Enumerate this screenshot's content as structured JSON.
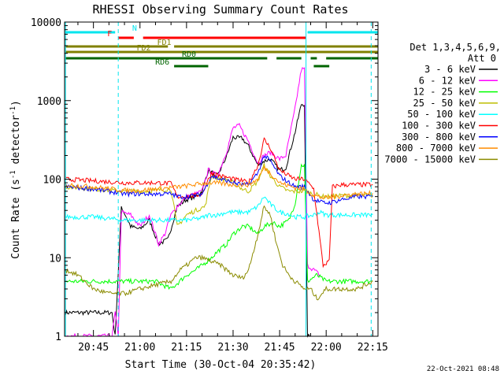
{
  "chart_data": {
    "type": "line",
    "title": "RHESSI Observing Summary Count Rates",
    "xlabel": "Start Time (30-Oct-04 20:35:42)",
    "ylabel_prefix": "Count Rate (s",
    "ylabel_sup1": "-1",
    "ylabel_mid": " detector",
    "ylabel_sup2": "-1",
    "ylabel_suffix": ")",
    "yscale": "log",
    "ylim": [
      1,
      10000
    ],
    "xlim_minutes": [
      35.7,
      136.7
    ],
    "x_ticks": [
      {
        "label": "20:45",
        "minute": 45
      },
      {
        "label": "21:00",
        "minute": 60
      },
      {
        "label": "21:15",
        "minute": 75
      },
      {
        "label": "21:30",
        "minute": 90
      },
      {
        "label": "21:45",
        "minute": 105
      },
      {
        "label": "22:00",
        "minute": 120
      },
      {
        "label": "22:15",
        "minute": 135
      }
    ],
    "y_ticks": [
      {
        "label": "1",
        "value": 1
      },
      {
        "label": "10",
        "value": 10
      },
      {
        "label": "100",
        "value": 100
      },
      {
        "label": "1000",
        "value": 1000
      },
      {
        "label": "10000",
        "value": 10000
      }
    ],
    "legend_header": [
      "Det 1,3,4,5,6,9,",
      "Att 0"
    ],
    "legend_placement": "right",
    "vertical_markers": [
      {
        "minute": 36,
        "color": "#00e5ee",
        "style": "solid"
      },
      {
        "minute": 53,
        "color": "#00e5ee",
        "style": "dashed"
      },
      {
        "minute": 113.5,
        "color": "#00e5ee",
        "style": "solid"
      },
      {
        "minute": 134.5,
        "color": "#00e5ee",
        "style": "dashed"
      }
    ],
    "flag_bars": [
      {
        "label": "N",
        "color": "#00e5ee",
        "segments": [
          [
            36,
            52
          ],
          [
            114,
            136.7
          ]
        ]
      },
      {
        "label": "F",
        "color": "#ff0000",
        "segments": [
          [
            53,
            58
          ],
          [
            61,
            113.5
          ]
        ]
      },
      {
        "label": "FD1",
        "color": "#808000",
        "segments": [
          [
            36,
            69
          ],
          [
            71,
            136.7
          ]
        ]
      },
      {
        "label": "FD2",
        "color": "#808000",
        "segments": [
          [
            36,
            136.7
          ]
        ]
      },
      {
        "label": "RD0",
        "color": "#006400",
        "segments": [
          [
            36,
            101
          ],
          [
            104,
            112
          ],
          [
            115,
            117
          ],
          [
            120,
            136.7
          ]
        ]
      },
      {
        "label": "RD6",
        "color": "#006400",
        "segments": [
          [
            71,
            82
          ],
          [
            116,
            121
          ]
        ]
      }
    ],
    "series": [
      {
        "name": "3 - 6 keV",
        "color": "#000000",
        "points": [
          [
            36,
            2
          ],
          [
            51,
            2
          ],
          [
            52,
            1
          ],
          [
            54,
            45
          ],
          [
            57,
            25
          ],
          [
            60,
            23
          ],
          [
            63,
            30
          ],
          [
            66,
            15
          ],
          [
            69,
            17
          ],
          [
            72,
            45
          ],
          [
            75,
            55
          ],
          [
            78,
            60
          ],
          [
            80,
            70
          ],
          [
            82,
            130
          ],
          [
            85,
            110
          ],
          [
            88,
            200
          ],
          [
            90,
            340
          ],
          [
            93,
            330
          ],
          [
            95,
            260
          ],
          [
            98,
            150
          ],
          [
            100,
            170
          ],
          [
            102,
            180
          ],
          [
            105,
            130
          ],
          [
            107,
            140
          ],
          [
            110,
            400
          ],
          [
            112,
            900
          ],
          [
            113,
            900
          ],
          [
            114,
            1
          ],
          [
            115,
            1
          ]
        ]
      },
      {
        "name": "6 - 12 keV",
        "color": "#ff00ff",
        "points": [
          [
            36,
            1
          ],
          [
            51,
            1
          ],
          [
            52,
            2
          ],
          [
            53,
            1
          ],
          [
            54,
            38
          ],
          [
            57,
            35
          ],
          [
            60,
            25
          ],
          [
            63,
            35
          ],
          [
            66,
            15
          ],
          [
            68,
            20
          ],
          [
            70,
            35
          ],
          [
            72,
            45
          ],
          [
            75,
            60
          ],
          [
            78,
            65
          ],
          [
            80,
            70
          ],
          [
            82,
            130
          ],
          [
            85,
            110
          ],
          [
            88,
            230
          ],
          [
            90,
            450
          ],
          [
            92,
            480
          ],
          [
            95,
            300
          ],
          [
            98,
            160
          ],
          [
            100,
            200
          ],
          [
            102,
            220
          ],
          [
            105,
            180
          ],
          [
            107,
            200
          ],
          [
            110,
            800
          ],
          [
            112,
            2500
          ],
          [
            113,
            2500
          ],
          [
            114,
            8
          ],
          [
            116,
            7
          ],
          [
            118,
            6
          ]
        ]
      },
      {
        "name": "12 - 25 keV",
        "color": "#00ff00",
        "points": [
          [
            36,
            5
          ],
          [
            45,
            5
          ],
          [
            55,
            5
          ],
          [
            60,
            5
          ],
          [
            65,
            5
          ],
          [
            70,
            4
          ],
          [
            75,
            6
          ],
          [
            78,
            7
          ],
          [
            80,
            8
          ],
          [
            83,
            10
          ],
          [
            85,
            12
          ],
          [
            88,
            15
          ],
          [
            90,
            20
          ],
          [
            93,
            25
          ],
          [
            95,
            25
          ],
          [
            98,
            20
          ],
          [
            100,
            25
          ],
          [
            103,
            28
          ],
          [
            105,
            25
          ],
          [
            108,
            30
          ],
          [
            110,
            50
          ],
          [
            112,
            150
          ],
          [
            113,
            150
          ],
          [
            114,
            5
          ],
          [
            117,
            6
          ],
          [
            120,
            5
          ],
          [
            125,
            5
          ],
          [
            130,
            5
          ],
          [
            135,
            5
          ]
        ]
      },
      {
        "name": "25 - 50 keV",
        "color": "#bebe00",
        "points": [
          [
            36,
            80
          ],
          [
            45,
            75
          ],
          [
            55,
            70
          ],
          [
            60,
            70
          ],
          [
            65,
            72
          ],
          [
            70,
            75
          ],
          [
            72,
            25
          ],
          [
            75,
            35
          ],
          [
            78,
            40
          ],
          [
            81,
            45
          ],
          [
            83,
            110
          ],
          [
            86,
            100
          ],
          [
            88,
            100
          ],
          [
            90,
            90
          ],
          [
            93,
            75
          ],
          [
            95,
            70
          ],
          [
            98,
            95
          ],
          [
            100,
            150
          ],
          [
            102,
            110
          ],
          [
            105,
            80
          ],
          [
            108,
            70
          ],
          [
            110,
            70
          ],
          [
            113,
            70
          ],
          [
            116,
            65
          ],
          [
            119,
            60
          ],
          [
            121,
            60
          ],
          [
            125,
            62
          ],
          [
            130,
            62
          ],
          [
            135,
            62
          ]
        ]
      },
      {
        "name": "50 - 100 keV",
        "color": "#00ffff",
        "points": [
          [
            36,
            33
          ],
          [
            45,
            33
          ],
          [
            55,
            30
          ],
          [
            60,
            30
          ],
          [
            65,
            30
          ],
          [
            70,
            30
          ],
          [
            75,
            30
          ],
          [
            80,
            32
          ],
          [
            82,
            35
          ],
          [
            85,
            35
          ],
          [
            88,
            38
          ],
          [
            90,
            38
          ],
          [
            93,
            38
          ],
          [
            95,
            38
          ],
          [
            98,
            45
          ],
          [
            100,
            60
          ],
          [
            102,
            48
          ],
          [
            105,
            38
          ],
          [
            108,
            36
          ],
          [
            110,
            33
          ],
          [
            113,
            33
          ],
          [
            116,
            35
          ],
          [
            118,
            38
          ],
          [
            120,
            35
          ],
          [
            125,
            35
          ],
          [
            130,
            35
          ],
          [
            135,
            35
          ]
        ]
      },
      {
        "name": "100 - 300 keV",
        "color": "#ff0000",
        "points": [
          [
            36,
            100
          ],
          [
            45,
            95
          ],
          [
            55,
            90
          ],
          [
            60,
            90
          ],
          [
            65,
            90
          ],
          [
            70,
            88
          ],
          [
            72,
            60
          ],
          [
            75,
            60
          ],
          [
            78,
            62
          ],
          [
            80,
            65
          ],
          [
            83,
            120
          ],
          [
            86,
            110
          ],
          [
            90,
            100
          ],
          [
            93,
            95
          ],
          [
            95,
            90
          ],
          [
            98,
            150
          ],
          [
            100,
            320
          ],
          [
            102,
            250
          ],
          [
            105,
            130
          ],
          [
            108,
            110
          ],
          [
            110,
            100
          ],
          [
            113,
            100
          ],
          [
            116,
            75
          ],
          [
            119,
            8
          ],
          [
            121,
            9
          ],
          [
            122,
            80
          ],
          [
            125,
            85
          ],
          [
            130,
            85
          ],
          [
            135,
            85
          ]
        ]
      },
      {
        "name": "300 - 800 keV",
        "color": "#0000ff",
        "points": [
          [
            36,
            80
          ],
          [
            45,
            75
          ],
          [
            55,
            65
          ],
          [
            60,
            65
          ],
          [
            65,
            65
          ],
          [
            70,
            65
          ],
          [
            72,
            60
          ],
          [
            75,
            60
          ],
          [
            78,
            62
          ],
          [
            80,
            65
          ],
          [
            83,
            110
          ],
          [
            86,
            100
          ],
          [
            90,
            90
          ],
          [
            93,
            85
          ],
          [
            95,
            85
          ],
          [
            98,
            120
          ],
          [
            100,
            200
          ],
          [
            102,
            170
          ],
          [
            105,
            110
          ],
          [
            108,
            90
          ],
          [
            110,
            80
          ],
          [
            113,
            80
          ],
          [
            116,
            55
          ],
          [
            119,
            50
          ],
          [
            121,
            50
          ],
          [
            125,
            55
          ],
          [
            130,
            60
          ],
          [
            135,
            60
          ]
        ]
      },
      {
        "name": "800 - 7000 keV",
        "color": "#ff8c00",
        "points": [
          [
            36,
            85
          ],
          [
            45,
            80
          ],
          [
            55,
            72
          ],
          [
            60,
            72
          ],
          [
            65,
            75
          ],
          [
            70,
            78
          ],
          [
            75,
            82
          ],
          [
            80,
            88
          ],
          [
            83,
            90
          ],
          [
            86,
            88
          ],
          [
            90,
            85
          ],
          [
            93,
            85
          ],
          [
            95,
            85
          ],
          [
            98,
            100
          ],
          [
            100,
            140
          ],
          [
            102,
            120
          ],
          [
            105,
            90
          ],
          [
            108,
            82
          ],
          [
            110,
            78
          ],
          [
            113,
            75
          ],
          [
            116,
            62
          ],
          [
            119,
            58
          ],
          [
            121,
            58
          ],
          [
            125,
            62
          ],
          [
            130,
            65
          ],
          [
            135,
            66
          ]
        ]
      },
      {
        "name": "7000 - 15000 keV",
        "color": "#8b8b00",
        "points": [
          [
            36,
            7
          ],
          [
            40,
            6
          ],
          [
            45,
            4
          ],
          [
            50,
            3.5
          ],
          [
            55,
            3.5
          ],
          [
            60,
            4
          ],
          [
            65,
            4.5
          ],
          [
            70,
            5
          ],
          [
            73,
            7
          ],
          [
            75,
            8
          ],
          [
            78,
            10
          ],
          [
            80,
            10
          ],
          [
            83,
            9
          ],
          [
            86,
            8
          ],
          [
            90,
            6
          ],
          [
            93,
            5.5
          ],
          [
            95,
            7
          ],
          [
            98,
            20
          ],
          [
            100,
            45
          ],
          [
            102,
            35
          ],
          [
            104,
            15
          ],
          [
            106,
            8
          ],
          [
            108,
            6
          ],
          [
            110,
            5
          ],
          [
            113,
            4
          ],
          [
            115,
            4
          ],
          [
            117,
            3
          ],
          [
            120,
            4
          ],
          [
            125,
            4
          ],
          [
            130,
            4
          ],
          [
            135,
            5
          ]
        ]
      }
    ]
  },
  "footer": {
    "timestamp": "22-Oct-2021 08:48"
  }
}
